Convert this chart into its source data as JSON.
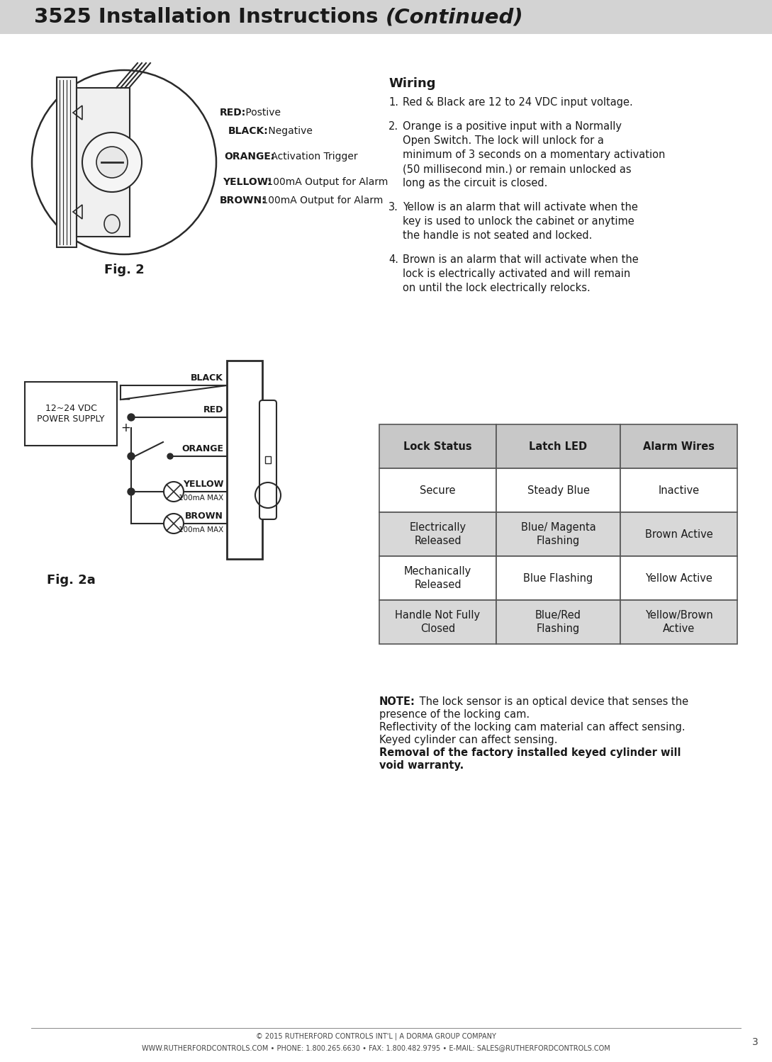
{
  "title_bold": "3525 Installation Instructions ",
  "title_italic": "(Continued)",
  "header_bg": "#d3d3d3",
  "page_bg": "#ffffff",
  "page_number": "3",
  "footer_line1": "© 2015 RUTHERFORD CONTROLS INT'L | A DORMA GROUP COMPANY",
  "footer_line2": "WWW.RUTHERFORDCONTROLS.COM • PHONE: 1.800.265.6630 • FAX: 1.800.482.9795 • E-MAIL: SALES@RUTHERFORDCONTROLS.COM",
  "fig2_caption": "Fig. 2",
  "fig2a_caption": "Fig. 2a",
  "wire_labels": [
    {
      "label": "RED:",
      "rest": " Postive"
    },
    {
      "label": "BLACK:",
      "rest": " Negative"
    },
    {
      "label": "ORANGE:",
      "rest": " Activation Trigger"
    },
    {
      "label": "YELLOW:",
      "rest": " 100mA Output for Alarm"
    },
    {
      "label": "BROWN:",
      "rest": " 100mA Output for Alarm"
    }
  ],
  "wiring_title": "Wiring",
  "wiring_steps": [
    "Red & Black are 12 to 24 VDC input voltage.",
    "Orange is a positive input with a Normally Open Switch. The lock will unlock for a minimum of 3 seconds on a momentary activation (50 millisecond min.) or remain unlocked as long as the circuit is closed.",
    "Yellow is an alarm that will activate when the key is used to unlock the cabinet or anytime the handle is not seated and locked.",
    "Brown is an alarm that will activate when the lock is electrically activated and will remain on until the lock electrically relocks."
  ],
  "table_headers": [
    "Lock Status",
    "Latch LED",
    "Alarm Wires"
  ],
  "table_rows": [
    [
      "Secure",
      "Steady Blue",
      "Inactive"
    ],
    [
      "Electrically\nReleased",
      "Blue/ Magenta\nFlashing",
      "Brown Active"
    ],
    [
      "Mechanically\nReleased",
      "Blue Flashing",
      "Yellow Active"
    ],
    [
      "Handle Not Fully\nClosed",
      "Blue/Red\nFlashing",
      "Yellow/Brown\nActive"
    ]
  ],
  "table_header_bg": "#c8c8c8",
  "table_row_bg_white": "#ffffff",
  "table_row_bg_gray": "#d8d8d8",
  "note_text_normal1": "The lock sensor is an optical device that senses the",
  "note_text_normal2": "presence of the locking cam.",
  "note_text_normal3": "Reflectivity of the locking cam material can affect sensing.",
  "note_text_normal4": "Keyed cylinder can affect sensing.",
  "note_text_bold1": "Removal of the factory installed keyed cylinder will",
  "note_text_bold2": "void warranty.",
  "power_supply_label": "12~24 VDC\nPOWER SUPPLY",
  "wire_diagram_labels": [
    "BLACK",
    "RED",
    "ORANGE",
    "YELLOW",
    "BROWN"
  ],
  "wire_sub_labels": [
    "",
    "",
    "",
    "100mA MAX",
    "100mA MAX"
  ]
}
